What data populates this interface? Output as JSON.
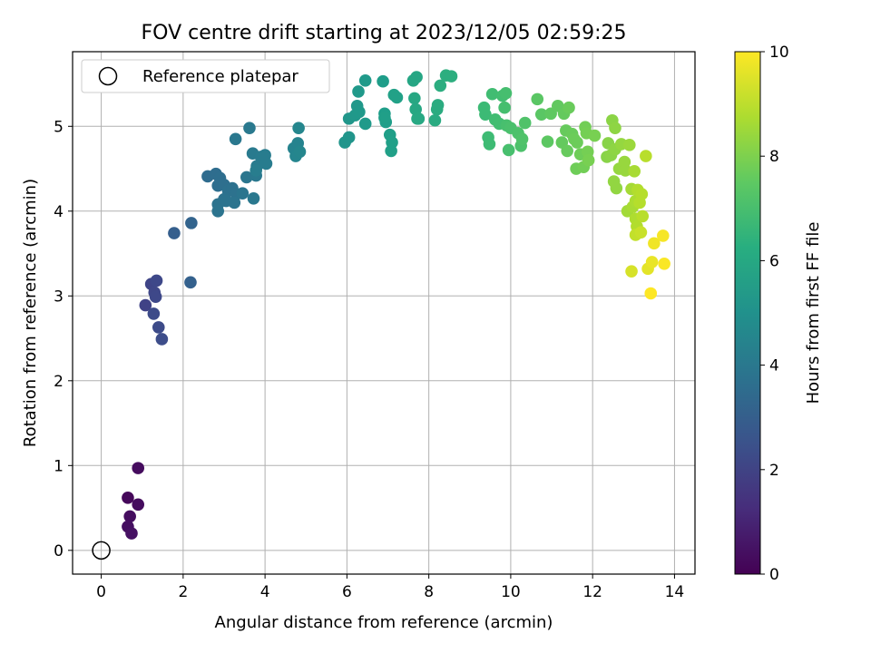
{
  "chart_data": {
    "type": "scatter",
    "title": "FOV centre drift starting at 2023/12/05 02:59:25",
    "xlabel": "Angular distance from reference (arcmin)",
    "ylabel": "Rotation from reference (arcmin)",
    "xlim": [
      -0.7,
      14.5
    ],
    "ylim": [
      -0.28,
      5.88
    ],
    "xticks": [
      0,
      2,
      4,
      6,
      8,
      10,
      12,
      14
    ],
    "yticks": [
      0,
      1,
      2,
      3,
      4,
      5
    ],
    "grid": true,
    "legend": {
      "position": "top-left",
      "entries": [
        "Reference platepar"
      ]
    },
    "reference_point": {
      "name": "Reference platepar",
      "x": 0,
      "y": 0
    },
    "colorbar": {
      "label": "Hours from first FF file",
      "colormap": "viridis",
      "range": [
        0,
        10
      ],
      "ticks": [
        0,
        2,
        4,
        6,
        8,
        10
      ]
    },
    "points": [
      {
        "x": 0.65,
        "y": 0.62,
        "t": 0.2
      },
      {
        "x": 0.9,
        "y": 0.97,
        "t": 0.3
      },
      {
        "x": 0.9,
        "y": 0.54,
        "t": 0.3
      },
      {
        "x": 0.7,
        "y": 0.4,
        "t": 0.35
      },
      {
        "x": 0.65,
        "y": 0.28,
        "t": 0.4
      },
      {
        "x": 0.74,
        "y": 0.2,
        "t": 0.45
      },
      {
        "x": 1.08,
        "y": 2.89,
        "t": 2.0
      },
      {
        "x": 1.22,
        "y": 3.14,
        "t": 2.1
      },
      {
        "x": 1.35,
        "y": 3.18,
        "t": 2.2
      },
      {
        "x": 1.3,
        "y": 3.04,
        "t": 2.15
      },
      {
        "x": 1.33,
        "y": 2.99,
        "t": 2.2
      },
      {
        "x": 1.28,
        "y": 2.79,
        "t": 2.3
      },
      {
        "x": 1.4,
        "y": 2.63,
        "t": 2.3
      },
      {
        "x": 1.48,
        "y": 2.49,
        "t": 2.35
      },
      {
        "x": 1.78,
        "y": 3.74,
        "t": 3.0
      },
      {
        "x": 2.18,
        "y": 3.16,
        "t": 3.1
      },
      {
        "x": 2.2,
        "y": 3.86,
        "t": 3.2
      },
      {
        "x": 2.6,
        "y": 4.41,
        "t": 3.5
      },
      {
        "x": 2.8,
        "y": 4.44,
        "t": 3.55
      },
      {
        "x": 2.9,
        "y": 4.39,
        "t": 3.6
      },
      {
        "x": 2.85,
        "y": 4.3,
        "t": 3.6
      },
      {
        "x": 3.0,
        "y": 4.31,
        "t": 3.65
      },
      {
        "x": 3.1,
        "y": 4.24,
        "t": 3.7
      },
      {
        "x": 3.2,
        "y": 4.27,
        "t": 3.7
      },
      {
        "x": 3.3,
        "y": 4.2,
        "t": 3.75
      },
      {
        "x": 3.0,
        "y": 4.14,
        "t": 3.75
      },
      {
        "x": 2.85,
        "y": 4.08,
        "t": 3.8
      },
      {
        "x": 3.05,
        "y": 4.12,
        "t": 3.8
      },
      {
        "x": 3.25,
        "y": 4.1,
        "t": 3.85
      },
      {
        "x": 2.85,
        "y": 4.0,
        "t": 3.85
      },
      {
        "x": 3.45,
        "y": 4.21,
        "t": 3.9
      },
      {
        "x": 3.55,
        "y": 4.4,
        "t": 3.95
      },
      {
        "x": 3.72,
        "y": 4.15,
        "t": 4.0
      },
      {
        "x": 3.78,
        "y": 4.42,
        "t": 4.0
      },
      {
        "x": 3.28,
        "y": 4.85,
        "t": 4.0
      },
      {
        "x": 3.62,
        "y": 4.98,
        "t": 4.05
      },
      {
        "x": 3.7,
        "y": 4.68,
        "t": 4.1
      },
      {
        "x": 3.8,
        "y": 4.53,
        "t": 4.15
      },
      {
        "x": 3.9,
        "y": 4.64,
        "t": 4.15
      },
      {
        "x": 4.0,
        "y": 4.66,
        "t": 4.2
      },
      {
        "x": 4.03,
        "y": 4.56,
        "t": 4.2
      },
      {
        "x": 3.78,
        "y": 4.48,
        "t": 4.25
      },
      {
        "x": 4.7,
        "y": 4.74,
        "t": 4.5
      },
      {
        "x": 4.8,
        "y": 4.8,
        "t": 4.5
      },
      {
        "x": 4.75,
        "y": 4.65,
        "t": 4.55
      },
      {
        "x": 4.85,
        "y": 4.7,
        "t": 4.6
      },
      {
        "x": 4.82,
        "y": 4.98,
        "t": 4.6
      },
      {
        "x": 5.95,
        "y": 4.81,
        "t": 5.2
      },
      {
        "x": 6.05,
        "y": 4.87,
        "t": 5.2
      },
      {
        "x": 6.05,
        "y": 5.09,
        "t": 5.25
      },
      {
        "x": 6.2,
        "y": 5.13,
        "t": 5.3
      },
      {
        "x": 6.25,
        "y": 5.24,
        "t": 5.3
      },
      {
        "x": 6.28,
        "y": 5.41,
        "t": 5.35
      },
      {
        "x": 6.45,
        "y": 5.54,
        "t": 5.4
      },
      {
        "x": 6.45,
        "y": 5.03,
        "t": 5.4
      },
      {
        "x": 6.3,
        "y": 5.17,
        "t": 5.35
      },
      {
        "x": 6.88,
        "y": 5.53,
        "t": 5.5
      },
      {
        "x": 6.92,
        "y": 5.15,
        "t": 5.55
      },
      {
        "x": 6.95,
        "y": 5.05,
        "t": 5.55
      },
      {
        "x": 6.92,
        "y": 5.1,
        "t": 5.6
      },
      {
        "x": 7.05,
        "y": 4.9,
        "t": 5.6
      },
      {
        "x": 7.1,
        "y": 4.81,
        "t": 5.65
      },
      {
        "x": 7.08,
        "y": 4.71,
        "t": 5.65
      },
      {
        "x": 7.15,
        "y": 5.37,
        "t": 5.7
      },
      {
        "x": 7.22,
        "y": 5.34,
        "t": 5.7
      },
      {
        "x": 7.62,
        "y": 5.54,
        "t": 5.9
      },
      {
        "x": 7.7,
        "y": 5.58,
        "t": 5.9
      },
      {
        "x": 7.65,
        "y": 5.33,
        "t": 5.95
      },
      {
        "x": 7.68,
        "y": 5.2,
        "t": 5.95
      },
      {
        "x": 7.72,
        "y": 5.09,
        "t": 6.0
      },
      {
        "x": 7.75,
        "y": 5.09,
        "t": 6.0
      },
      {
        "x": 8.15,
        "y": 5.07,
        "t": 6.1
      },
      {
        "x": 8.2,
        "y": 5.2,
        "t": 6.15
      },
      {
        "x": 8.22,
        "y": 5.25,
        "t": 6.15
      },
      {
        "x": 8.28,
        "y": 5.48,
        "t": 6.2
      },
      {
        "x": 8.42,
        "y": 5.6,
        "t": 6.25
      },
      {
        "x": 8.55,
        "y": 5.59,
        "t": 6.25
      },
      {
        "x": 9.35,
        "y": 5.22,
        "t": 6.8
      },
      {
        "x": 9.38,
        "y": 5.14,
        "t": 6.8
      },
      {
        "x": 9.45,
        "y": 4.87,
        "t": 6.85
      },
      {
        "x": 9.48,
        "y": 4.79,
        "t": 6.85
      },
      {
        "x": 9.55,
        "y": 5.38,
        "t": 6.9
      },
      {
        "x": 9.62,
        "y": 5.08,
        "t": 6.9
      },
      {
        "x": 9.72,
        "y": 5.03,
        "t": 6.95
      },
      {
        "x": 9.8,
        "y": 5.36,
        "t": 6.95
      },
      {
        "x": 9.88,
        "y": 5.39,
        "t": 7.0
      },
      {
        "x": 9.85,
        "y": 5.22,
        "t": 7.0
      },
      {
        "x": 9.9,
        "y": 5.01,
        "t": 7.05
      },
      {
        "x": 9.95,
        "y": 4.72,
        "t": 7.05
      },
      {
        "x": 10.0,
        "y": 4.98,
        "t": 7.1
      },
      {
        "x": 10.18,
        "y": 4.92,
        "t": 7.15
      },
      {
        "x": 10.25,
        "y": 4.77,
        "t": 7.15
      },
      {
        "x": 10.28,
        "y": 4.85,
        "t": 7.2
      },
      {
        "x": 10.35,
        "y": 5.04,
        "t": 7.2
      },
      {
        "x": 10.65,
        "y": 5.32,
        "t": 7.4
      },
      {
        "x": 10.75,
        "y": 5.14,
        "t": 7.4
      },
      {
        "x": 10.9,
        "y": 4.82,
        "t": 7.45
      },
      {
        "x": 10.98,
        "y": 5.15,
        "t": 7.5
      },
      {
        "x": 11.15,
        "y": 5.24,
        "t": 7.55
      },
      {
        "x": 11.25,
        "y": 4.81,
        "t": 7.6
      },
      {
        "x": 11.3,
        "y": 5.15,
        "t": 7.6
      },
      {
        "x": 11.35,
        "y": 4.95,
        "t": 7.65
      },
      {
        "x": 11.38,
        "y": 4.71,
        "t": 7.65
      },
      {
        "x": 11.42,
        "y": 5.22,
        "t": 7.7
      },
      {
        "x": 11.5,
        "y": 4.91,
        "t": 7.7
      },
      {
        "x": 11.55,
        "y": 4.85,
        "t": 7.75
      },
      {
        "x": 11.62,
        "y": 4.81,
        "t": 7.75
      },
      {
        "x": 11.6,
        "y": 4.5,
        "t": 7.8
      },
      {
        "x": 11.7,
        "y": 4.67,
        "t": 7.8
      },
      {
        "x": 11.78,
        "y": 4.52,
        "t": 7.85
      },
      {
        "x": 11.82,
        "y": 4.99,
        "t": 7.85
      },
      {
        "x": 11.85,
        "y": 4.92,
        "t": 7.9
      },
      {
        "x": 11.88,
        "y": 4.7,
        "t": 7.9
      },
      {
        "x": 11.9,
        "y": 4.6,
        "t": 7.95
      },
      {
        "x": 12.05,
        "y": 4.89,
        "t": 7.95
      },
      {
        "x": 12.35,
        "y": 4.64,
        "t": 8.2
      },
      {
        "x": 12.38,
        "y": 4.8,
        "t": 8.2
      },
      {
        "x": 12.45,
        "y": 4.66,
        "t": 8.25
      },
      {
        "x": 12.48,
        "y": 5.07,
        "t": 8.25
      },
      {
        "x": 12.55,
        "y": 4.98,
        "t": 8.3
      },
      {
        "x": 12.55,
        "y": 4.73,
        "t": 8.3
      },
      {
        "x": 12.52,
        "y": 4.35,
        "t": 8.35
      },
      {
        "x": 12.58,
        "y": 4.27,
        "t": 8.35
      },
      {
        "x": 12.65,
        "y": 4.5,
        "t": 8.4
      },
      {
        "x": 12.7,
        "y": 4.79,
        "t": 8.4
      },
      {
        "x": 12.78,
        "y": 4.58,
        "t": 8.45
      },
      {
        "x": 12.8,
        "y": 4.48,
        "t": 8.45
      },
      {
        "x": 12.9,
        "y": 4.78,
        "t": 8.5
      },
      {
        "x": 12.85,
        "y": 4.0,
        "t": 8.6
      },
      {
        "x": 12.95,
        "y": 4.26,
        "t": 8.65
      },
      {
        "x": 12.98,
        "y": 4.05,
        "t": 8.7
      },
      {
        "x": 13.02,
        "y": 4.47,
        "t": 8.7
      },
      {
        "x": 13.05,
        "y": 4.12,
        "t": 8.75
      },
      {
        "x": 13.05,
        "y": 3.91,
        "t": 8.8
      },
      {
        "x": 13.08,
        "y": 3.82,
        "t": 8.85
      },
      {
        "x": 13.1,
        "y": 4.25,
        "t": 8.85
      },
      {
        "x": 13.15,
        "y": 4.1,
        "t": 8.9
      },
      {
        "x": 13.2,
        "y": 4.2,
        "t": 8.9
      },
      {
        "x": 13.22,
        "y": 3.94,
        "t": 8.95
      },
      {
        "x": 13.3,
        "y": 4.65,
        "t": 8.95
      },
      {
        "x": 13.05,
        "y": 3.72,
        "t": 9.1
      },
      {
        "x": 13.18,
        "y": 3.75,
        "t": 9.2
      },
      {
        "x": 12.95,
        "y": 3.29,
        "t": 9.4
      },
      {
        "x": 13.35,
        "y": 3.32,
        "t": 9.6
      },
      {
        "x": 13.45,
        "y": 3.4,
        "t": 9.7
      },
      {
        "x": 13.5,
        "y": 3.62,
        "t": 9.8
      },
      {
        "x": 13.72,
        "y": 3.71,
        "t": 9.9
      },
      {
        "x": 13.75,
        "y": 3.38,
        "t": 9.95
      },
      {
        "x": 13.42,
        "y": 3.03,
        "t": 10.0
      }
    ]
  }
}
